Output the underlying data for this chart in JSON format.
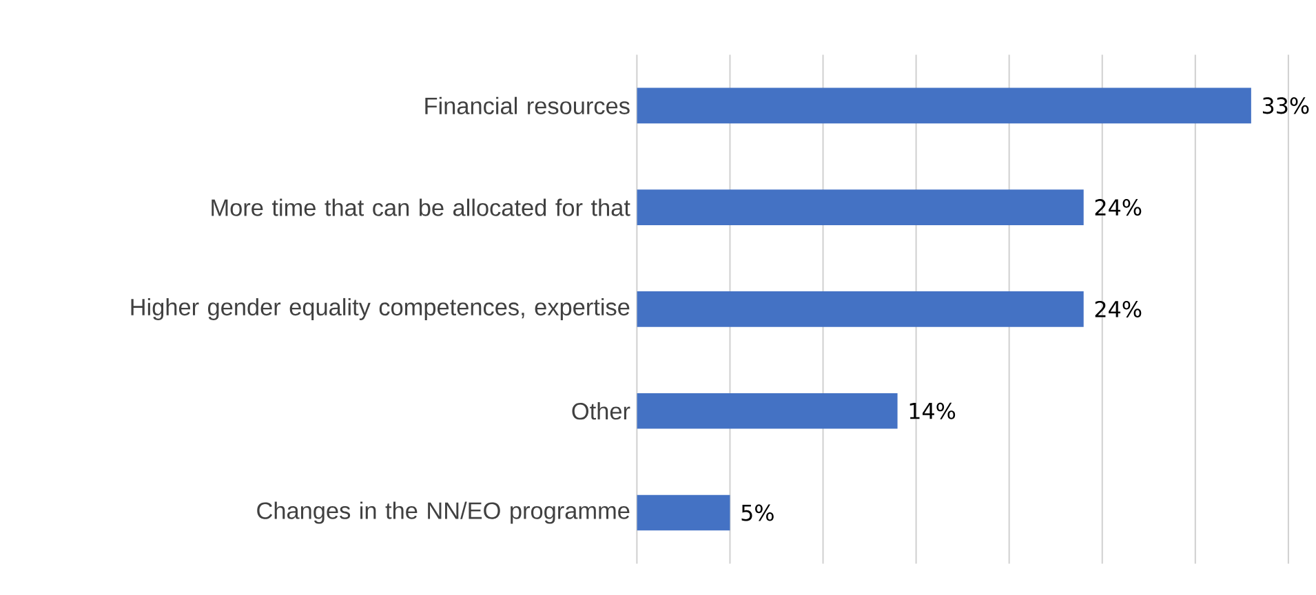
{
  "chart_data": {
    "type": "bar",
    "orientation": "horizontal",
    "categories": [
      "Financial resources",
      "More time that can be allocated for that",
      "Higher gender equality competences, expertise",
      "Other",
      "Changes in the NN/EO programme"
    ],
    "values": [
      33,
      24,
      24,
      14,
      5
    ],
    "value_labels": [
      "33%",
      "24%",
      "24%",
      "14%",
      "5%"
    ],
    "color": "#4472c4",
    "xlim": [
      0,
      35
    ],
    "xticks": [
      {
        "value": 0,
        "label": null
      },
      {
        "value": 5,
        "label": null
      },
      {
        "value": 10,
        "label": null
      },
      {
        "value": 15,
        "label": null
      },
      {
        "value": 20,
        "label": null
      },
      {
        "value": 25,
        "label": null
      },
      {
        "value": 30,
        "label": null
      },
      {
        "value": 35,
        "label": null
      }
    ],
    "grid": "x",
    "tick_labels": "y"
  }
}
